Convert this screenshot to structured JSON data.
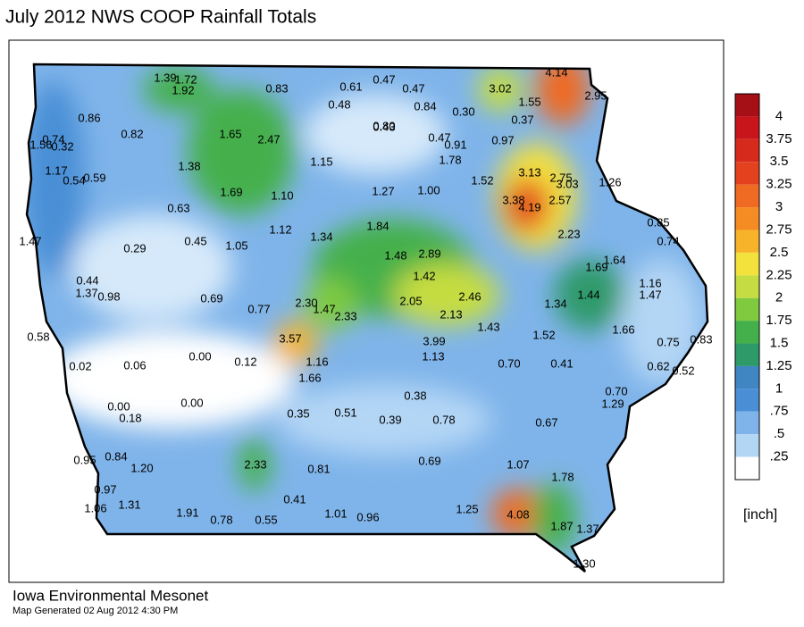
{
  "title": "July 2012 NWS COOP Rainfall Totals",
  "stations": [
    "1.39",
    "1.72",
    "1.92",
    "0.83",
    "0.61",
    "0.47",
    "0.47",
    "3.02",
    "4.14",
    "1.55",
    "2.95",
    "0.48",
    "0.84",
    "0.30",
    "0.37",
    "0.86",
    "0.82",
    "0.74",
    "0.32",
    "1.56",
    "1.65",
    "2.47",
    "0.80",
    "0.43",
    "0.47",
    "0.91",
    "0.97",
    "1.78",
    "1.15",
    "1.38",
    "1.17",
    "0.54",
    "0.59",
    "3.13",
    "2.75",
    "3.03",
    "1.26",
    "1.52",
    "1.69",
    "1.10",
    "1.27",
    "1.00",
    "3.38",
    "4.19",
    "2.57",
    "0.63",
    "0.85",
    "1.12",
    "1.84",
    "2.23",
    "1.47",
    "0.29",
    "0.45",
    "1.05",
    "1.34",
    "0.74",
    "1.48",
    "2.89",
    "1.69",
    "1.64",
    "0.44",
    "1.37",
    "0.98",
    "1.42",
    "1.16",
    "1.47",
    "0.69",
    "0.77",
    "2.30",
    "1.47",
    "2.33",
    "2.05",
    "2.46",
    "2.13",
    "1.34",
    "1.44",
    "1.43",
    "1.66",
    "0.58",
    "3.57",
    "3.99",
    "1.52",
    "0.75",
    "0.83",
    "1.13",
    "0.02",
    "0.06",
    "0.00",
    "0.12",
    "1.16",
    "0.70",
    "0.41",
    "0.62",
    "0.52",
    "1.66",
    "0.38",
    "0.70",
    "1.29",
    "0.00",
    "0.18",
    "0.00",
    "0.35",
    "0.51",
    "0.39",
    "0.78",
    "0.67",
    "0.95",
    "0.84",
    "1.20",
    "2.33",
    "0.81",
    "0.69",
    "1.07",
    "1.78",
    "0.97",
    "1.06",
    "1.31",
    "1.91",
    "0.78",
    "0.55",
    "0.41",
    "1.01",
    "0.96",
    "1.25",
    "4.08",
    "1.87",
    "1.37",
    "1.30"
  ],
  "legend": {
    "levels": [
      "4",
      "3.75",
      "3.5",
      "3.25",
      "3",
      "2.75",
      "2.5",
      "2.25",
      "2",
      "1.75",
      "1.5",
      "1.25",
      "1",
      ".75",
      ".5",
      ".25"
    ],
    "colors": [
      "#a50f15",
      "#c8141b",
      "#d62a1d",
      "#e4421e",
      "#ef6a22",
      "#f58c23",
      "#f7b42b",
      "#f3e13c",
      "#c6dd41",
      "#7fca3f",
      "#44b04b",
      "#2e9a6a",
      "#3f86c2",
      "#4a8fd6",
      "#7fb4ea",
      "#b3d6f5",
      "#ffffff"
    ],
    "unit": "[inch]"
  },
  "footer": {
    "org": "Iowa Environmental Mesonet",
    "generated": "Map Generated 02 Aug 2012 4:30 PM"
  }
}
